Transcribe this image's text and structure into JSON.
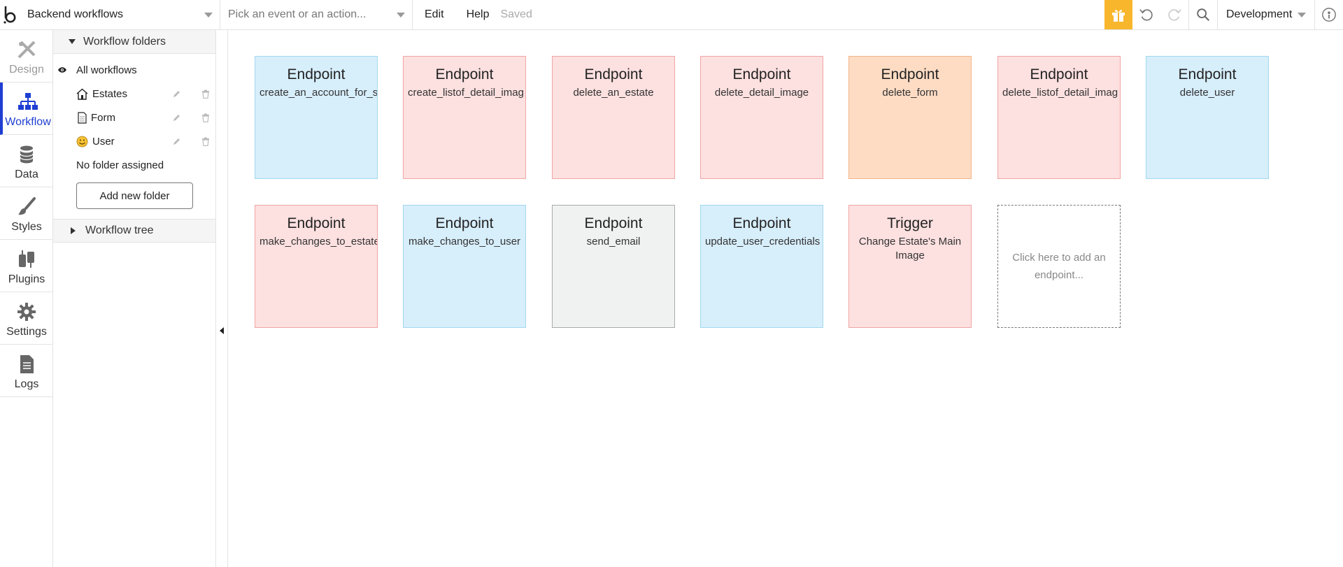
{
  "topbar": {
    "page_select": "Backend workflows",
    "event_placeholder": "Pick an event or an action...",
    "menu_edit": "Edit",
    "menu_help": "Help",
    "status": "Saved",
    "environment": "Development",
    "accent": "#f8b62d"
  },
  "nav": {
    "items": [
      {
        "label": "Design",
        "icon": "design-icon",
        "state": "disabled"
      },
      {
        "label": "Workflow",
        "icon": "workflow-icon",
        "state": "active"
      },
      {
        "label": "Data",
        "icon": "database-icon",
        "state": "normal"
      },
      {
        "label": "Styles",
        "icon": "brush-icon",
        "state": "normal"
      },
      {
        "label": "Plugins",
        "icon": "plug-icon",
        "state": "normal"
      },
      {
        "label": "Settings",
        "icon": "gear-icon",
        "state": "normal"
      },
      {
        "label": "Logs",
        "icon": "document-icon",
        "state": "normal"
      }
    ],
    "active_color": "#1f3ed1"
  },
  "panel": {
    "folders_header": "Workflow folders",
    "all_workflows": "All workflows",
    "folders": [
      {
        "label": "Estates",
        "icon": "house-icon"
      },
      {
        "label": "Form",
        "icon": "page-icon"
      },
      {
        "label": "User",
        "icon": "smiley-icon"
      }
    ],
    "no_folder": "No folder assigned",
    "add_folder_button": "Add new folder",
    "tree_header": "Workflow tree"
  },
  "canvas": {
    "cards": [
      {
        "title": "Endpoint",
        "name": "create_an_account_for_s",
        "color": "blue"
      },
      {
        "title": "Endpoint",
        "name": "create_listof_detail_imag",
        "color": "pink"
      },
      {
        "title": "Endpoint",
        "name": "delete_an_estate",
        "color": "pink"
      },
      {
        "title": "Endpoint",
        "name": "delete_detail_image",
        "color": "pink"
      },
      {
        "title": "Endpoint",
        "name": "delete_form",
        "color": "orange"
      },
      {
        "title": "Endpoint",
        "name": "delete_listof_detail_imag",
        "color": "pink"
      },
      {
        "title": "Endpoint",
        "name": "delete_user",
        "color": "blue"
      },
      {
        "title": "Endpoint",
        "name": "make_changes_to_estate",
        "color": "pink"
      },
      {
        "title": "Endpoint",
        "name": "make_changes_to_user",
        "color": "blue"
      },
      {
        "title": "Endpoint",
        "name": "send_email",
        "color": "gray"
      },
      {
        "title": "Endpoint",
        "name": "update_user_credentials",
        "color": "blue"
      },
      {
        "title": "Trigger",
        "name": "Change Estate's Main Image",
        "color": "pink"
      }
    ],
    "add_endpoint": "Click here to add an endpoint..."
  }
}
